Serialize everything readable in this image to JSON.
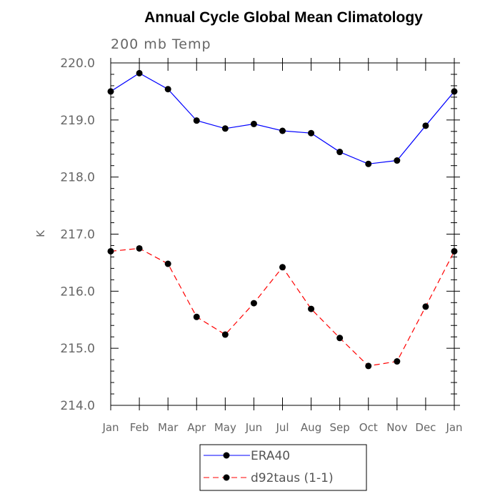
{
  "chart_data": {
    "type": "line",
    "title": "Annual Cycle Global Mean Climatology",
    "subtitle": "200 mb Temp",
    "xlabel": "",
    "ylabel": "K",
    "ylim": [
      214.0,
      220.0
    ],
    "yticks": [
      "214.0",
      "215.0",
      "216.0",
      "217.0",
      "218.0",
      "219.0",
      "220.0"
    ],
    "categories": [
      "Jan",
      "Feb",
      "Mar",
      "Apr",
      "May",
      "Jun",
      "Jul",
      "Aug",
      "Sep",
      "Oct",
      "Nov",
      "Dec",
      "Jan"
    ],
    "grid": false,
    "legend_position": "bottom",
    "series": [
      {
        "name": "ERA40",
        "color": "#0000ff",
        "line_style": "solid",
        "marker": "filled-circle",
        "values": [
          219.5,
          219.82,
          219.54,
          218.99,
          218.85,
          218.93,
          218.81,
          218.77,
          218.44,
          218.23,
          218.29,
          218.9,
          219.5
        ]
      },
      {
        "name": "d92taus (1-1)",
        "color": "#ff0000",
        "line_style": "dashed",
        "marker": "filled-circle",
        "values": [
          216.7,
          216.75,
          216.48,
          215.55,
          215.24,
          215.79,
          216.42,
          215.69,
          215.18,
          214.69,
          214.77,
          215.73,
          216.7
        ]
      }
    ]
  }
}
